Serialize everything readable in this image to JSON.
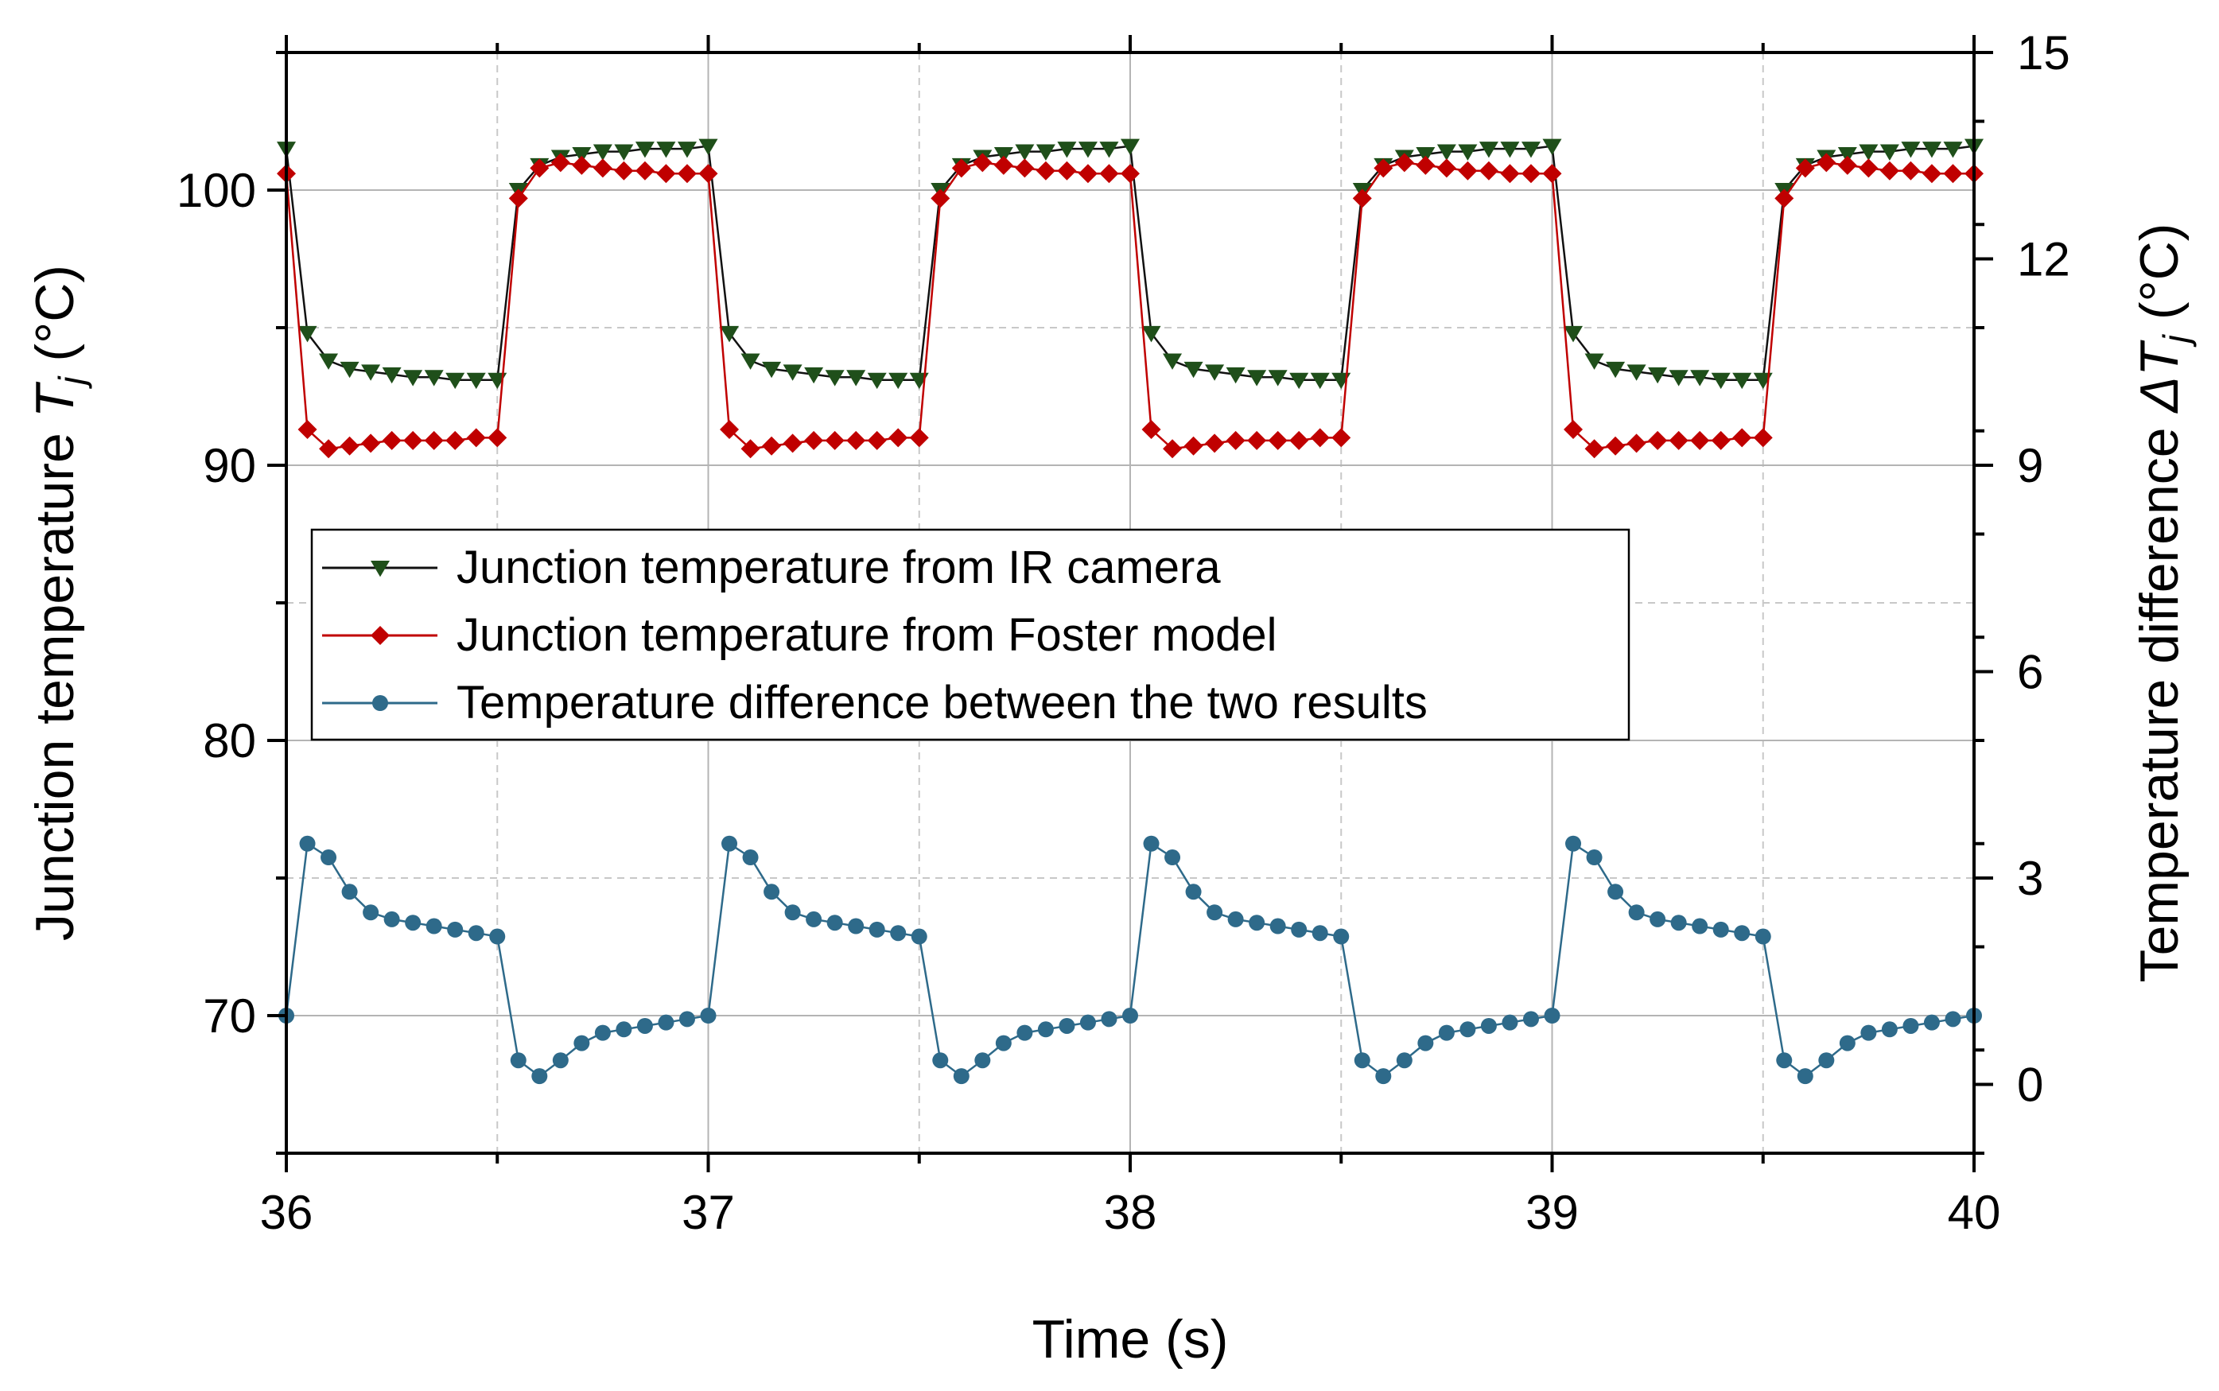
{
  "chart_data": {
    "type": "line",
    "xlabel": "Time (s)",
    "ylabel_left": {
      "text": "Junction temperature ",
      "symbol": "T",
      "subscript": "j",
      "unit": " (°C)"
    },
    "ylabel_right": {
      "text": "Temperature difference ",
      "symbol": "ΔT",
      "subscript": "j",
      "unit": " (°C)"
    },
    "xlim": [
      36,
      40
    ],
    "ylim_left": [
      65,
      105
    ],
    "ylim_right": [
      -1,
      15
    ],
    "x_ticks": [
      36,
      37,
      38,
      39,
      40
    ],
    "x_tick_labels": [
      "36",
      "37",
      "38",
      "39",
      "40"
    ],
    "y_left_ticks": [
      70,
      80,
      90,
      100
    ],
    "y_left_tick_labels": [
      "70",
      "80",
      "90",
      "100"
    ],
    "y_right_ticks": [
      0,
      3,
      6,
      9,
      12,
      15
    ],
    "y_right_tick_labels": [
      "0",
      "3",
      "6",
      "9",
      "12",
      "15"
    ],
    "grid": true,
    "legend_position": "center-left",
    "period_s": 1.0,
    "sample_offsets": [
      0.0,
      0.05,
      0.1,
      0.15,
      0.2,
      0.25,
      0.3,
      0.35,
      0.4,
      0.45,
      0.5,
      0.55,
      0.6,
      0.65,
      0.7,
      0.75,
      0.8,
      0.85,
      0.9,
      0.95,
      1.0
    ],
    "series": [
      {
        "name": "Junction temperature from IR camera",
        "axis": "left",
        "color": "#1f4f1a",
        "marker": "triangle-down",
        "cycle_values": [
          101.5,
          94.8,
          93.8,
          93.5,
          93.4,
          93.3,
          93.2,
          93.2,
          93.1,
          93.1,
          93.1,
          100.0,
          100.9,
          101.2,
          101.3,
          101.4,
          101.4,
          101.5,
          101.5,
          101.5,
          101.6
        ]
      },
      {
        "name": "Junction temperature from Foster model",
        "axis": "left",
        "color": "#c00000",
        "marker": "diamond",
        "cycle_values": [
          100.6,
          91.3,
          90.6,
          90.7,
          90.8,
          90.9,
          90.9,
          90.9,
          90.9,
          91.0,
          91.0,
          99.7,
          100.8,
          101.0,
          100.9,
          100.8,
          100.7,
          100.7,
          100.6,
          100.6,
          100.6
        ]
      },
      {
        "name": "Temperature difference between the two results",
        "axis": "right",
        "color": "#2e6a8a",
        "marker": "circle",
        "cycle_values": [
          1.0,
          3.5,
          3.3,
          2.8,
          2.5,
          2.4,
          2.35,
          2.3,
          2.25,
          2.2,
          2.15,
          0.35,
          0.12,
          0.35,
          0.6,
          0.75,
          0.8,
          0.85,
          0.9,
          0.95,
          1.0
        ]
      }
    ]
  }
}
